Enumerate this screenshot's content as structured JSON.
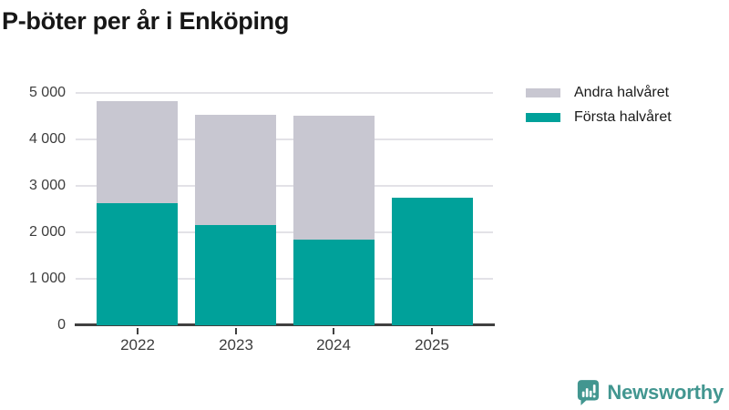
{
  "title": "P-böter per år i Enköping",
  "legend": {
    "items": [
      {
        "label": "Andra halvåret",
        "color": "#c8c7d1"
      },
      {
        "label": "Första halvåret",
        "color": "#00a19a"
      }
    ]
  },
  "chart_data": {
    "type": "bar",
    "stacked": true,
    "title": "P-böter per år i Enköping",
    "xlabel": "",
    "ylabel": "",
    "categories": [
      "2022",
      "2023",
      "2024",
      "2025"
    ],
    "series": [
      {
        "name": "Första halvåret",
        "color": "#00a19a",
        "values": [
          2630,
          2160,
          1850,
          2750
        ]
      },
      {
        "name": "Andra halvåret",
        "color": "#c8c7d1",
        "values": [
          2200,
          2370,
          2660,
          null
        ]
      }
    ],
    "ylim": [
      0,
      5000
    ],
    "yticks": [
      0,
      1000,
      2000,
      3000,
      4000,
      5000
    ],
    "ytick_labels": [
      "0",
      "1 000",
      "2 000",
      "3 000",
      "4 000",
      "5 000"
    ],
    "grid": "horizontal",
    "legend_position": "top-right"
  },
  "colors": {
    "first_half": "#00a19a",
    "second_half": "#c8c7d1",
    "gridline": "#e3e2e7",
    "axis": "#404040",
    "tick_label": "#3d3d3d",
    "title": "#171717",
    "brand": "#429690"
  },
  "branding": {
    "logo_text": "Newsworthy"
  }
}
